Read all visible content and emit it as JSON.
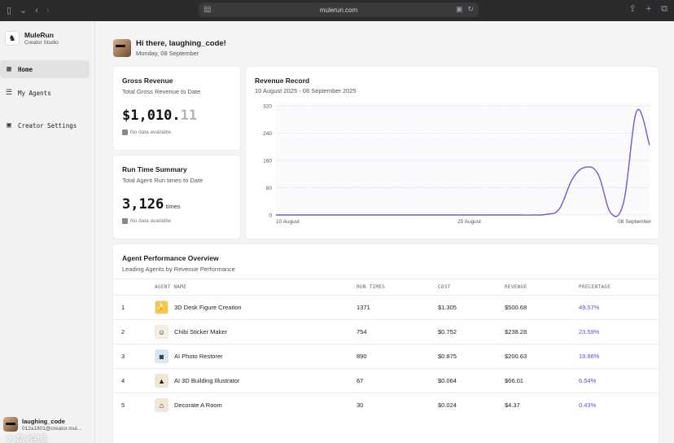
{
  "browser": {
    "url": "mulerun.com"
  },
  "brand": {
    "name": "MuleRun",
    "subtitle": "Creator Studio"
  },
  "nav": {
    "home": "Home",
    "agents": "My Agents",
    "settings": "Creator Settings"
  },
  "user": {
    "name": "laughing_code",
    "email": "012a1801@creator.mul..."
  },
  "watermark": "大数跨境",
  "greeting": {
    "title": "Hi there, laughing_code!",
    "date": "Monday, 08 September"
  },
  "gross": {
    "title": "Gross Revenue",
    "subtitle": "Total Gross Revenue to Date",
    "value_main": "$1,010.",
    "value_cents": "11",
    "nodata": "No data available"
  },
  "runtime": {
    "title": "Run Time Summary",
    "subtitle": "Total Agent Run times to Date",
    "value": "3,126",
    "unit": "times",
    "nodata": "No data available"
  },
  "revenue": {
    "title": "Revenue Record",
    "subtitle": "10 August 2025 - 08 September 2025"
  },
  "chart_data": {
    "type": "line",
    "title": "Revenue Record",
    "x_ticks": [
      "10 August",
      "25 August",
      "08 September"
    ],
    "y_ticks": [
      0,
      80,
      160,
      240,
      320
    ],
    "ylim": [
      0,
      330
    ],
    "grid": true,
    "x": [
      "08-10",
      "08-11",
      "08-12",
      "08-13",
      "08-14",
      "08-15",
      "08-16",
      "08-17",
      "08-18",
      "08-19",
      "08-20",
      "08-21",
      "08-22",
      "08-23",
      "08-24",
      "08-25",
      "08-26",
      "08-27",
      "08-28",
      "08-29",
      "08-30",
      "08-31",
      "09-01",
      "09-02",
      "09-03",
      "09-04",
      "09-05",
      "09-06",
      "09-07",
      "09-08"
    ],
    "series": [
      {
        "values": [
          0,
          0,
          0,
          0,
          0,
          0,
          0,
          0,
          0,
          0,
          0,
          0,
          0,
          0,
          0,
          0,
          0,
          0,
          0,
          0,
          0,
          2,
          18,
          105,
          140,
          120,
          5,
          40,
          305,
          205
        ]
      }
    ]
  },
  "perf": {
    "title": "Agent Performance Overview",
    "subtitle": "Leading Agents by Revenue Performance",
    "headers": {
      "name": "AGENT NAME",
      "run": "RUN TIMES",
      "cost": "COST",
      "revenue": "REVENUE",
      "pct": "PRECENTAGE"
    },
    "rows": [
      {
        "idx": "1",
        "name": "3D Desk Figure Creation",
        "run": "1371",
        "cost": "$1.305",
        "revenue": "$500.68",
        "pct": "49.57%",
        "color": "#f2c94c",
        "icon": "🍌"
      },
      {
        "idx": "2",
        "name": "Chibi Sticker Maker",
        "run": "754",
        "cost": "$0.752",
        "revenue": "$238.28",
        "pct": "23.59%",
        "color": "#f6efe4",
        "icon": "☺"
      },
      {
        "idx": "3",
        "name": "AI Photo Restorer",
        "run": "890",
        "cost": "$0.875",
        "revenue": "$200.63",
        "pct": "19.86%",
        "color": "#d6e6f5",
        "icon": "◙"
      },
      {
        "idx": "4",
        "name": "AI 3D Building Illustrator",
        "run": "67",
        "cost": "$0.064",
        "revenue": "$66.01",
        "pct": "6.54%",
        "color": "#f1e6cf",
        "icon": "▲"
      },
      {
        "idx": "5",
        "name": "Decorate A Room",
        "run": "30",
        "cost": "$0.024",
        "revenue": "$4.37",
        "pct": "0.43%",
        "color": "#f3e6d4",
        "icon": "⌂"
      }
    ]
  }
}
